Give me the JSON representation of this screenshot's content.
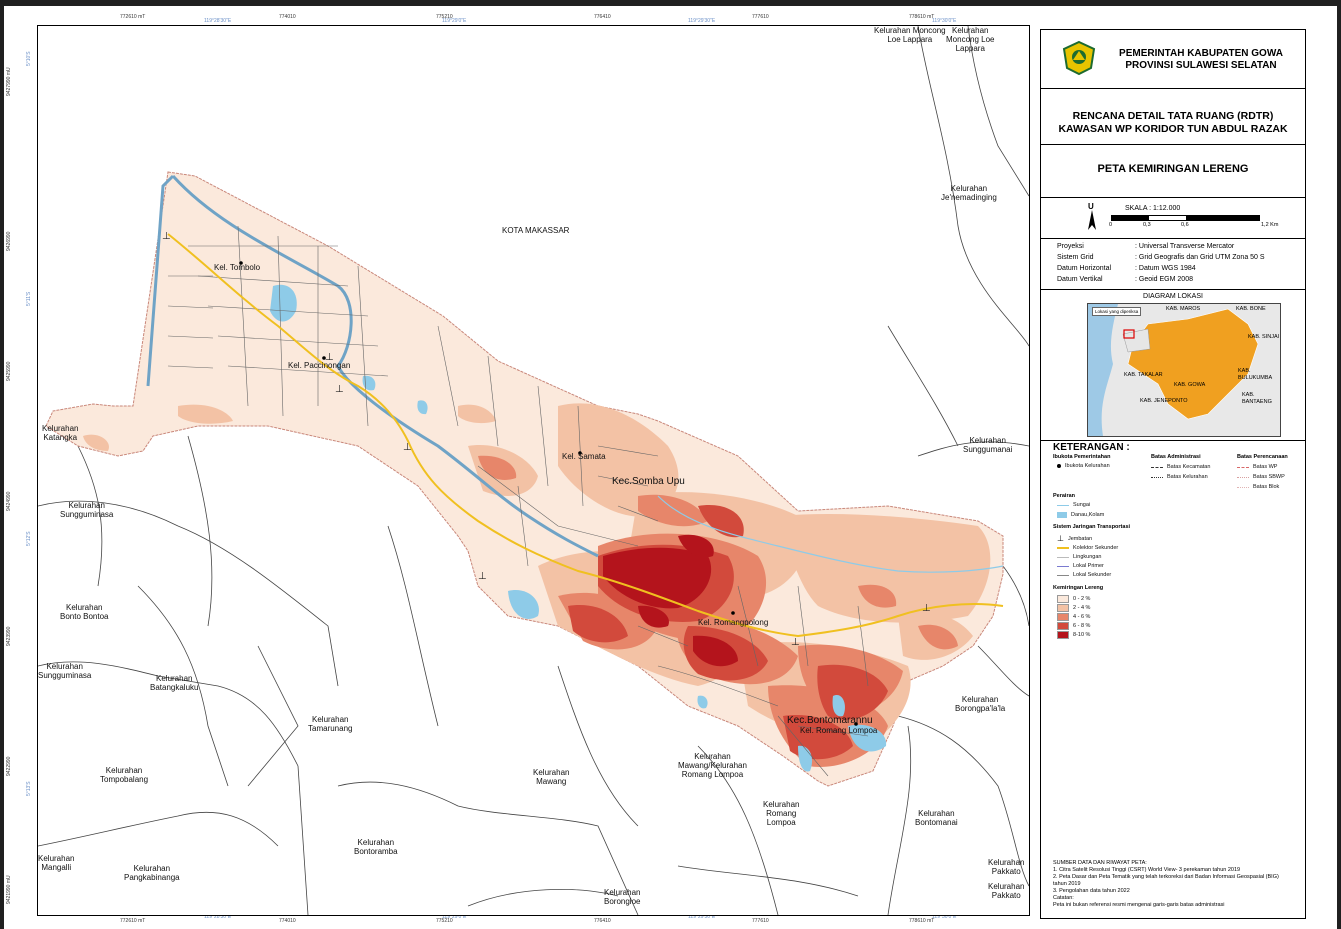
{
  "header": {
    "agency_line1": "PEMERINTAH KABUPATEN GOWA",
    "agency_line2": "PROVINSI SULAWESI SELATAN",
    "plan_line1": "RENCANA DETAIL TATA RUANG (RDTR)",
    "plan_line2": "KAWASAN WP KORIDOR TUN ABDUL RAZAK",
    "map_title": "PETA KEMIRINGAN LERENG"
  },
  "scale": {
    "north": "U",
    "label": "SKALA :  1:12.000",
    "bar_ticks": [
      "0",
      "0,3",
      "0,6",
      "1,2 Km"
    ]
  },
  "projection": [
    {
      "key": "Proyeksi",
      "value": ": Universal Transverse Mercator"
    },
    {
      "key": "Sistem Grid",
      "value": ": Grid Geografis dan Grid UTM Zona 50 S"
    },
    {
      "key": "Datum Horizontal",
      "value": ": Datum WGS 1984"
    },
    {
      "key": "Datum Vertikal",
      "value": ": Geoid EGM 2008"
    }
  ],
  "diagram": {
    "title": "DIAGRAM LOKASI",
    "inset_legend": "Lokasi yang diperiksa",
    "regions": [
      "KAB. MAROS",
      "KAB. BONE",
      "KAB. SINJAI",
      "KAB. TAKALAR",
      "KAB. GOWA",
      "KAB. BULUKUMBA",
      "KAB. JENEPONTO",
      "KAB. BANTAENG"
    ]
  },
  "legend": {
    "title": "KETERANGAN :",
    "ibukota_title": "Ibukota Pemerintahan",
    "ibukota_item": "Ibukota Kelurahan",
    "admin_title": "Batas Administrasi",
    "admin_items": [
      "Batas Kecamatan",
      "Batas Kelurahan"
    ],
    "plan_title": "Batas Perencanaan",
    "plan_items": [
      "Batas WP",
      "Batas SBWP",
      "Batas Blok"
    ],
    "perairan_title": "Perairan",
    "perairan_items": [
      "Sungai",
      "Danau,Kolam"
    ],
    "transport_title": "Sistem Jaringan Transportasi",
    "transport_items": [
      "Jembatan",
      "Kolektor Sekunder",
      "Lingkungan",
      "Lokal Primer",
      "Lokal Sekunder"
    ],
    "slope_title": "Kemiringan Lereng",
    "slope_classes": [
      {
        "label": "0 - 2 %",
        "color": "#fbe9dc"
      },
      {
        "label": "2 - 4 %",
        "color": "#f3c2a5"
      },
      {
        "label": "4 - 6 %",
        "color": "#e7866a"
      },
      {
        "label": "6 - 8 %",
        "color": "#d24a3c"
      },
      {
        "label": "8-10 %",
        "color": "#b4141c"
      }
    ]
  },
  "sources": {
    "title": "SUMBER DATA DAN RIWAYAT PETA:",
    "lines": [
      "1. Citra Satelit Resolusi Tinggi (CSRT) World View- 3 perekaman tahun 2019",
      "2. Peta Dasar dan Peta Tematik yang telah terkoreksi dari Badan Informasi Geospasial (BIG)",
      "    tahun 2019",
      "3. Pengolahan data tahun 2022",
      "Catatan:",
      "Peta ini bukan referensi resmi mengenai garis-garis batas administrasi"
    ]
  },
  "grid": {
    "top_utm": [
      "772610 mT",
      "774010",
      "775210",
      "776410",
      "777610",
      "778610 mT"
    ],
    "top_geo": [
      "119°28'30\"E",
      "119°29'0\"E",
      "119°29'30\"E",
      "119°30'0\"E"
    ],
    "bottom_utm": [
      "772610 mT",
      "774010",
      "775210",
      "776410",
      "777610",
      "778610 mT"
    ],
    "bottom_geo": [
      "119°28'30\"E",
      "119°29'0\"E",
      "119°29'30\"E",
      "119°30'0\"E"
    ],
    "left_utm": [
      "9427990 mU",
      "9426990",
      "9425990",
      "9424990",
      "9423990",
      "9422990",
      "9421990 mU"
    ],
    "left_geo": [
      "5°10'S",
      "5°11'S",
      "5°12'S",
      "5°13'S"
    ]
  },
  "map_labels": {
    "kota_makassar": "KOTA MAKASSAR",
    "moncong_loe_lappara_1": "Kelurahan Moncong\nLoe Lappara",
    "moncong_loe_lappara_2": "Kelurahan\nMoncong Loe\nLappara",
    "jenemadinging": "Kelurahan\nJe'nemadinging",
    "katangka": "Kelurahan\nKatangka",
    "sunggumanai": "Kelurahan\nSunggumanai",
    "sungguminasa_1": "Kelurahan\nSungguminasa",
    "bonto_bontoa": "Kelurahan\nBonto Bontoa",
    "sungguminasa_2": "Kelurahan\nSungguminasa",
    "batangkaluku": "Kelurahan\nBatangkaluku",
    "tamarunang": "Kelurahan\nTamarunang",
    "tompobalang": "Kelurahan\nTompobalang",
    "mawang": "Kelurahan\nMawang",
    "mawang_romang": "Kelurahan\nMawang/Kelurahan\nRomang Lompoa",
    "romang_lompoa": "Kelurahan\nRomang\nLompoa",
    "bontomanai": "Kelurahan\nBontomanai",
    "borongpalala": "Kelurahan\nBorongpa'la'la",
    "bontoramba": "Kelurahan\nBontoramba",
    "mangalli": "Kelurahan\nMangalli",
    "pangkabinanga": "Kelurahan\nPangkabinanga",
    "borongloe": "Kelurahan\nBorongloe",
    "pakkato_1": "Kelurahan\nPakkato",
    "pakkato_2": "Kelurahan\nPakkato",
    "kel_tombolo": "Kel. Tombolo",
    "kel_paccinongan": "Kel. Paccinongan",
    "kel_samata": "Kel. Samata",
    "kec_somba_upu": "Kec.Somba Upu",
    "kel_romangpolong": "Kel. Romangpolong",
    "kec_bontomarannu": "Kec.Bontomarannu",
    "kel_romang_lompoa": "Kel. Romang Lompoa"
  }
}
